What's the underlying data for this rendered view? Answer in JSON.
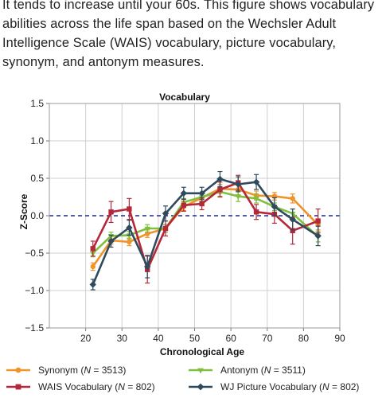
{
  "intro_text": "It tends to increase until your 60s. This figure shows vocabulary abilities across the life span based on the Wechsler Adult Intelligence Scale (WAIS) vocabulary, picture vocabulary, synonym, and antonym measures.",
  "chart_data": {
    "type": "line",
    "title": "Vocabulary",
    "xlabel": "Chronological Age",
    "ylabel": "Z-Score",
    "xlim": [
      10,
      90
    ],
    "ylim": [
      -1.5,
      1.5
    ],
    "xticks": [
      "20",
      "30",
      "40",
      "50",
      "60",
      "70",
      "80",
      "90"
    ],
    "yticks": [
      "1.5",
      "1.0",
      "0.5",
      "0.0",
      "−0.5",
      "−1.0",
      "−1.5"
    ],
    "grid": true,
    "reference_line": 0,
    "x": [
      22,
      27,
      32,
      37,
      42,
      47,
      52,
      57,
      62,
      67,
      72,
      77,
      84
    ],
    "series": [
      {
        "name": "Synonym (N = 3513)",
        "legend_name": "Synonym (",
        "legend_n": "N",
        "legend_rest": " = 3513)",
        "color": "#f0932b",
        "marker": "circle",
        "values": [
          -0.68,
          -0.33,
          -0.35,
          -0.24,
          -0.17,
          0.12,
          0.24,
          0.36,
          0.35,
          0.27,
          0.26,
          0.23,
          -0.12
        ],
        "errors": [
          0.05,
          0.05,
          0.05,
          0.05,
          0.05,
          0.05,
          0.05,
          0.06,
          0.07,
          0.06,
          0.05,
          0.06,
          0.07
        ]
      },
      {
        "name": "Antonym (N = 3511)",
        "legend_name": "Antonym (",
        "legend_n": "N",
        "legend_rest": " = 3511)",
        "color": "#7fbf3f",
        "marker": "triangle",
        "values": [
          -0.5,
          -0.27,
          -0.26,
          -0.17,
          -0.17,
          0.18,
          0.25,
          0.32,
          0.26,
          0.23,
          0.12,
          0.03,
          -0.28
        ],
        "errors": [
          0.05,
          0.05,
          0.05,
          0.05,
          0.05,
          0.05,
          0.05,
          0.06,
          0.07,
          0.06,
          0.05,
          0.06,
          0.07
        ]
      },
      {
        "name": "WAIS Vocabulary (N = 802)",
        "legend_name": "WAIS Vocabulary (",
        "legend_n": "N",
        "legend_rest": " = 802)",
        "color": "#b5283a",
        "marker": "square",
        "values": [
          -0.44,
          0.05,
          0.09,
          -0.72,
          -0.17,
          0.14,
          0.16,
          0.35,
          0.44,
          0.05,
          0.02,
          -0.2,
          -0.07
        ],
        "errors": [
          0.1,
          0.14,
          0.14,
          0.18,
          0.1,
          0.08,
          0.08,
          0.1,
          0.1,
          0.1,
          0.12,
          0.18,
          0.16
        ]
      },
      {
        "name": "WJ Picture Vocabulary (N = 802)",
        "legend_name": "WJ Picture Vocabulary (",
        "legend_n": "N",
        "legend_rest": " = 802)",
        "color": "#2e4a5c",
        "marker": "diamond",
        "values": [
          -0.92,
          -0.34,
          -0.16,
          -0.68,
          0.03,
          0.3,
          0.3,
          0.49,
          0.42,
          0.45,
          0.12,
          -0.05,
          -0.27
        ],
        "errors": [
          0.07,
          0.08,
          0.1,
          0.15,
          0.1,
          0.08,
          0.08,
          0.1,
          0.1,
          0.1,
          0.12,
          0.14,
          0.13
        ]
      }
    ]
  }
}
